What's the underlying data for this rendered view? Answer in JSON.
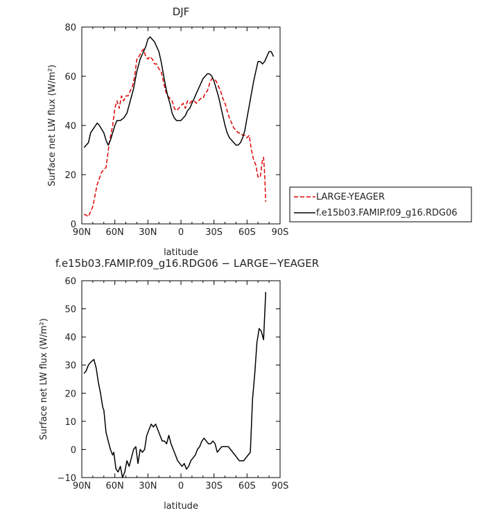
{
  "chart_data": [
    {
      "type": "line",
      "title": "DJF",
      "xlabel": "latitude",
      "ylabel": "Surface net LW flux (W/m²)",
      "xlim": [
        90,
        -90
      ],
      "ylim": [
        0,
        80
      ],
      "xticks": [
        90,
        60,
        30,
        0,
        -30,
        -60,
        -90
      ],
      "xtick_labels": [
        "90N",
        "60N",
        "30N",
        "0",
        "30S",
        "60S",
        "90S"
      ],
      "yticks": [
        0,
        20,
        40,
        60,
        80
      ],
      "ytick_labels": [
        "0",
        "20",
        "40",
        "60",
        "80"
      ],
      "legend": {
        "placement": "right",
        "entries": [
          "LARGE-YEAGER",
          "f.e15b03.FAMIP.f09_g16.RDG06"
        ]
      },
      "series": [
        {
          "name": "LARGE-YEAGER",
          "color": "#e00000",
          "dash": "dashed",
          "points": [
            [
              88,
              4
            ],
            [
              84,
              3
            ],
            [
              80,
              7
            ],
            [
              76,
              16
            ],
            [
              72,
              21
            ],
            [
              68,
              23
            ],
            [
              65,
              33
            ],
            [
              62,
              40
            ],
            [
              60,
              47
            ],
            [
              58,
              50
            ],
            [
              56,
              47
            ],
            [
              54,
              52
            ],
            [
              52,
              50
            ],
            [
              50,
              52
            ],
            [
              48,
              52
            ],
            [
              46,
              54
            ],
            [
              44,
              56
            ],
            [
              42,
              60
            ],
            [
              40,
              67
            ],
            [
              38,
              68
            ],
            [
              36,
              70
            ],
            [
              34,
              71
            ],
            [
              32,
              68
            ],
            [
              30,
              67
            ],
            [
              28,
              68
            ],
            [
              26,
              67
            ],
            [
              24,
              65
            ],
            [
              22,
              65
            ],
            [
              20,
              63
            ],
            [
              18,
              62
            ],
            [
              16,
              58
            ],
            [
              14,
              54
            ],
            [
              12,
              52
            ],
            [
              10,
              51
            ],
            [
              8,
              50
            ],
            [
              6,
              47
            ],
            [
              4,
              46
            ],
            [
              2,
              47
            ],
            [
              0,
              48
            ],
            [
              -2,
              49
            ],
            [
              -4,
              47
            ],
            [
              -6,
              50
            ],
            [
              -8,
              49
            ],
            [
              -10,
              50
            ],
            [
              -12,
              50
            ],
            [
              -14,
              49
            ],
            [
              -16,
              50
            ],
            [
              -18,
              51
            ],
            [
              -20,
              51
            ],
            [
              -22,
              53
            ],
            [
              -24,
              54
            ],
            [
              -26,
              57
            ],
            [
              -28,
              59
            ],
            [
              -30,
              59
            ],
            [
              -32,
              58
            ],
            [
              -34,
              56
            ],
            [
              -36,
              54
            ],
            [
              -38,
              51
            ],
            [
              -40,
              49
            ],
            [
              -42,
              46
            ],
            [
              -44,
              43
            ],
            [
              -46,
              41
            ],
            [
              -48,
              39
            ],
            [
              -50,
              38
            ],
            [
              -52,
              37
            ],
            [
              -54,
              37
            ],
            [
              -56,
              36
            ],
            [
              -58,
              36
            ],
            [
              -60,
              35
            ],
            [
              -62,
              36
            ],
            [
              -64,
              30
            ],
            [
              -66,
              26
            ],
            [
              -68,
              24
            ],
            [
              -70,
              19
            ],
            [
              -72,
              19
            ],
            [
              -74,
              26
            ],
            [
              -75,
              27
            ],
            [
              -76,
              20
            ],
            [
              -77,
              9
            ]
          ]
        },
        {
          "name": "f.e15b03.FAMIP.f09_g16.RDG06",
          "color": "#000000",
          "dash": "solid",
          "points": [
            [
              88,
              31
            ],
            [
              84,
              33
            ],
            [
              82,
              37
            ],
            [
              79,
              39
            ],
            [
              76,
              41
            ],
            [
              74,
              40
            ],
            [
              70,
              37
            ],
            [
              68,
              34
            ],
            [
              66,
              32
            ],
            [
              64,
              34
            ],
            [
              62,
              37
            ],
            [
              60,
              40
            ],
            [
              58,
              42
            ],
            [
              55,
              42
            ],
            [
              52,
              43
            ],
            [
              49,
              45
            ],
            [
              46,
              50
            ],
            [
              43,
              55
            ],
            [
              40,
              62
            ],
            [
              37,
              67
            ],
            [
              34,
              70
            ],
            [
              32,
              72
            ],
            [
              30,
              75
            ],
            [
              28,
              76
            ],
            [
              26,
              75
            ],
            [
              24,
              74
            ],
            [
              22,
              72
            ],
            [
              20,
              70
            ],
            [
              18,
              66
            ],
            [
              16,
              61
            ],
            [
              14,
              56
            ],
            [
              12,
              52
            ],
            [
              10,
              49
            ],
            [
              8,
              45
            ],
            [
              6,
              43
            ],
            [
              4,
              42
            ],
            [
              2,
              42
            ],
            [
              0,
              42
            ],
            [
              -2,
              43
            ],
            [
              -4,
              44
            ],
            [
              -6,
              46
            ],
            [
              -8,
              47
            ],
            [
              -10,
              49
            ],
            [
              -12,
              51
            ],
            [
              -14,
              53
            ],
            [
              -16,
              55
            ],
            [
              -18,
              57
            ],
            [
              -20,
              59
            ],
            [
              -22,
              60
            ],
            [
              -24,
              61
            ],
            [
              -26,
              61
            ],
            [
              -28,
              60
            ],
            [
              -30,
              58
            ],
            [
              -32,
              55
            ],
            [
              -34,
              52
            ],
            [
              -36,
              48
            ],
            [
              -38,
              44
            ],
            [
              -40,
              40
            ],
            [
              -42,
              37
            ],
            [
              -44,
              35
            ],
            [
              -46,
              34
            ],
            [
              -48,
              33
            ],
            [
              -50,
              32
            ],
            [
              -52,
              32
            ],
            [
              -54,
              33
            ],
            [
              -56,
              35
            ],
            [
              -58,
              38
            ],
            [
              -60,
              43
            ],
            [
              -62,
              48
            ],
            [
              -64,
              53
            ],
            [
              -66,
              58
            ],
            [
              -68,
              62
            ],
            [
              -70,
              66
            ],
            [
              -72,
              66
            ],
            [
              -74,
              65
            ],
            [
              -76,
              66
            ],
            [
              -78,
              68
            ],
            [
              -80,
              70
            ],
            [
              -82,
              70
            ],
            [
              -84,
              68
            ]
          ]
        }
      ]
    },
    {
      "type": "line",
      "title": "f.e15b03.FAMIP.f09_g16.RDG06 − LARGE−YEAGER",
      "xlabel": "latitude",
      "ylabel": "Surface net LW flux (W/m²)",
      "xlim": [
        90,
        -90
      ],
      "ylim": [
        -10,
        60
      ],
      "xticks": [
        90,
        60,
        30,
        0,
        -30,
        -60,
        -90
      ],
      "xtick_labels": [
        "90N",
        "60N",
        "30N",
        "0",
        "30S",
        "60S",
        "90S"
      ],
      "yticks": [
        -10,
        0,
        10,
        20,
        30,
        40,
        50,
        60
      ],
      "ytick_labels": [
        "−10",
        "0",
        "10",
        "20",
        "30",
        "40",
        "50",
        "60"
      ],
      "series": [
        {
          "color": "#000000",
          "dash": "solid",
          "points": [
            [
              88,
              27
            ],
            [
              86,
              28
            ],
            [
              84,
              30
            ],
            [
              82,
              31
            ],
            [
              79,
              32
            ],
            [
              77,
              29
            ],
            [
              75,
              24
            ],
            [
              73,
              20
            ],
            [
              71,
              15
            ],
            [
              70,
              14
            ],
            [
              68,
              6
            ],
            [
              66,
              3
            ],
            [
              64,
              0
            ],
            [
              62,
              -2
            ],
            [
              61,
              -1
            ],
            [
              59,
              -7
            ],
            [
              57,
              -8
            ],
            [
              55,
              -6
            ],
            [
              53,
              -10
            ],
            [
              51,
              -8
            ],
            [
              49,
              -4
            ],
            [
              47,
              -6
            ],
            [
              45,
              -3
            ],
            [
              43,
              0
            ],
            [
              41,
              1
            ],
            [
              39,
              -5
            ],
            [
              37,
              0
            ],
            [
              35,
              -1
            ],
            [
              33,
              0
            ],
            [
              31,
              5
            ],
            [
              29,
              7
            ],
            [
              27,
              9
            ],
            [
              25,
              8
            ],
            [
              23,
              9
            ],
            [
              21,
              7
            ],
            [
              19,
              5
            ],
            [
              17,
              3
            ],
            [
              15,
              3
            ],
            [
              13,
              2
            ],
            [
              11,
              5
            ],
            [
              9,
              2
            ],
            [
              7,
              0
            ],
            [
              5,
              -2
            ],
            [
              3,
              -4
            ],
            [
              1,
              -5
            ],
            [
              -1,
              -6
            ],
            [
              -3,
              -5
            ],
            [
              -5,
              -7
            ],
            [
              -7,
              -6
            ],
            [
              -9,
              -4
            ],
            [
              -11,
              -3
            ],
            [
              -13,
              -2
            ],
            [
              -15,
              0
            ],
            [
              -17,
              1
            ],
            [
              -19,
              3
            ],
            [
              -21,
              4
            ],
            [
              -23,
              3
            ],
            [
              -25,
              2
            ],
            [
              -27,
              2
            ],
            [
              -29,
              3
            ],
            [
              -31,
              2
            ],
            [
              -33,
              -1
            ],
            [
              -35,
              0
            ],
            [
              -37,
              1
            ],
            [
              -39,
              1
            ],
            [
              -41,
              1
            ],
            [
              -43,
              1
            ],
            [
              -45,
              0
            ],
            [
              -47,
              -1
            ],
            [
              -49,
              -2
            ],
            [
              -51,
              -3
            ],
            [
              -53,
              -4
            ],
            [
              -55,
              -4
            ],
            [
              -57,
              -4
            ],
            [
              -59,
              -3
            ],
            [
              -61,
              -2
            ],
            [
              -63,
              -1
            ],
            [
              -65,
              18
            ],
            [
              -67,
              27
            ],
            [
              -69,
              38
            ],
            [
              -71,
              43
            ],
            [
              -73,
              42
            ],
            [
              -75,
              39
            ],
            [
              -77,
              56
            ]
          ]
        }
      ]
    }
  ]
}
